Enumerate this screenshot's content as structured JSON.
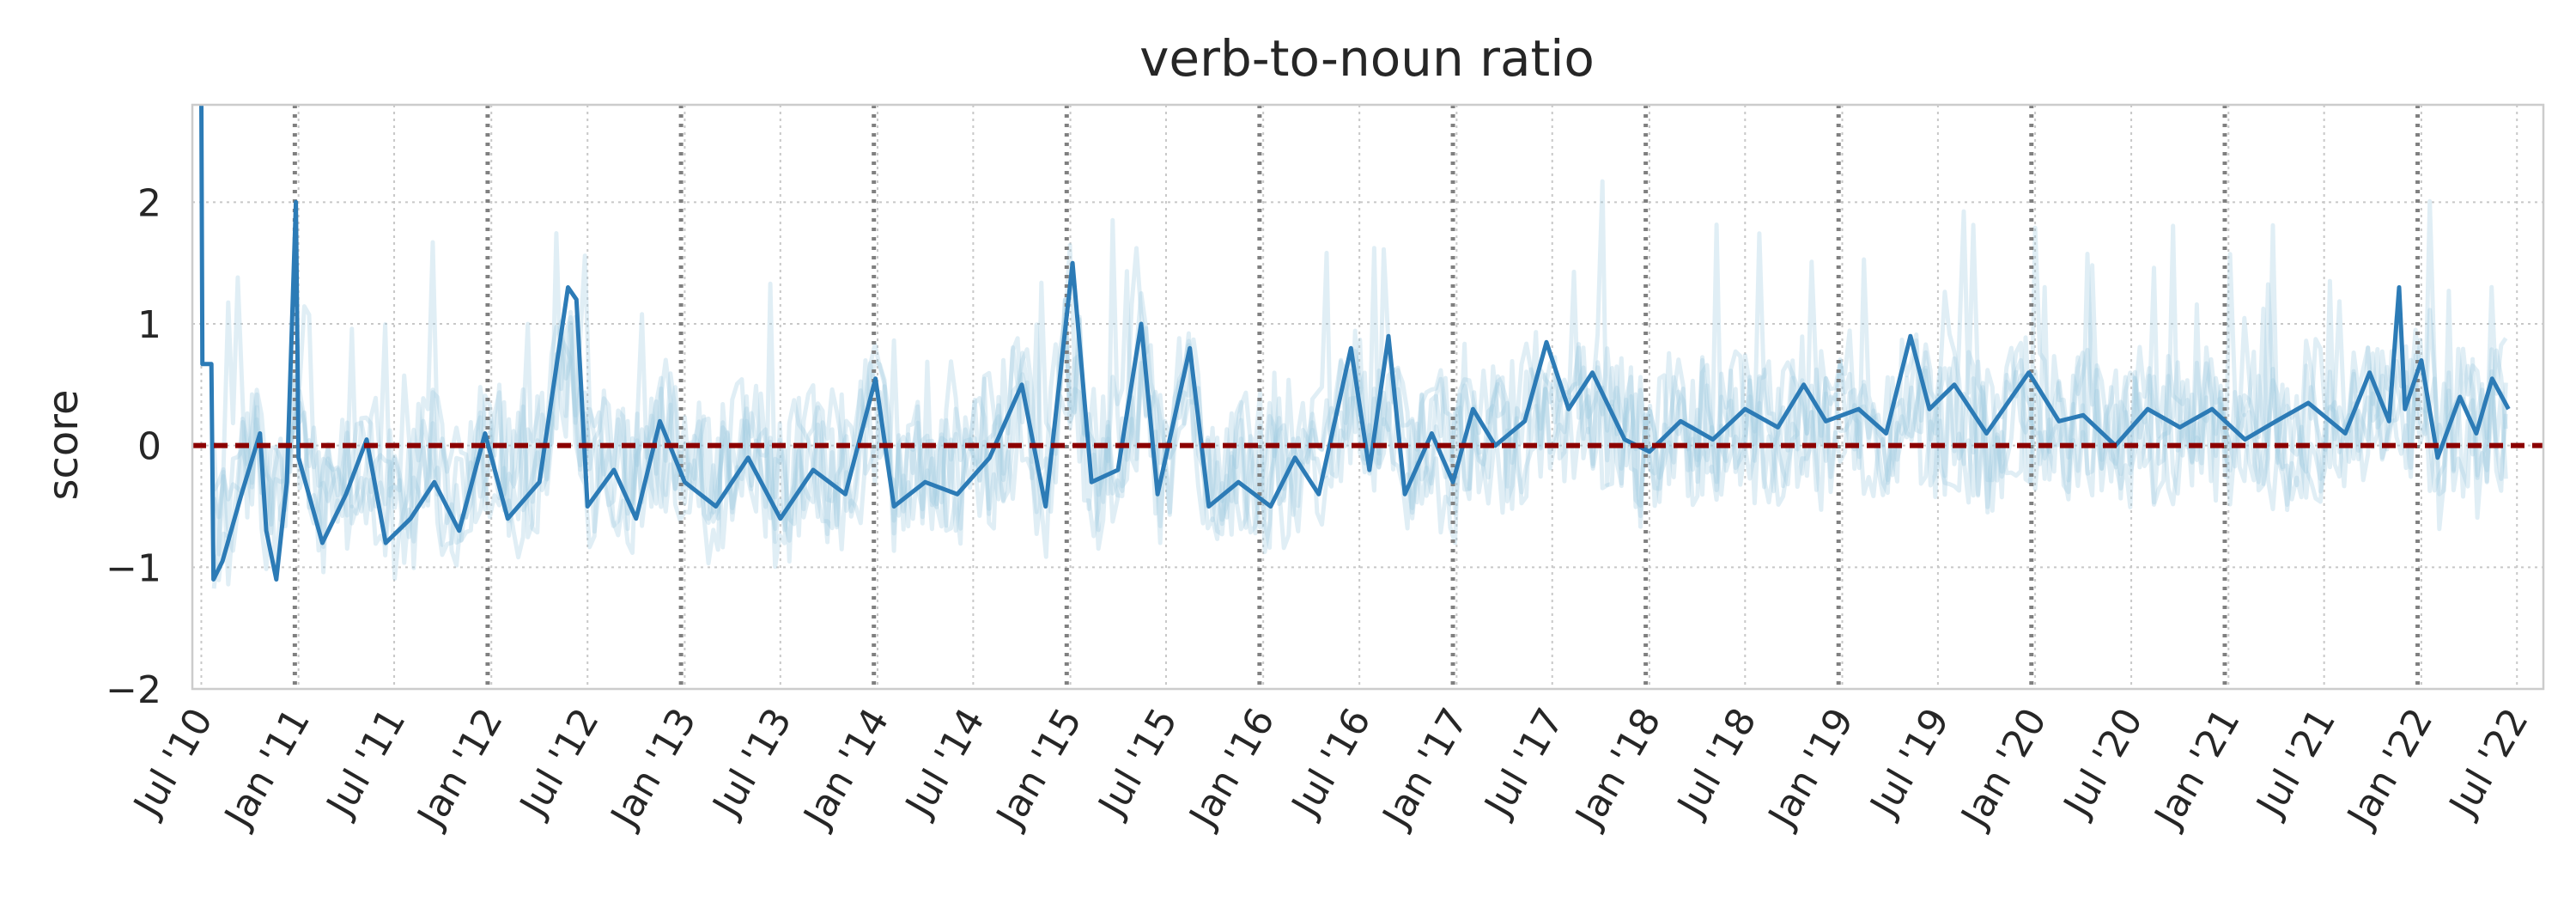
{
  "chart_data": {
    "type": "line",
    "title": "verb-to-noun ratio",
    "xlabel": "",
    "ylabel": "score",
    "xlim": [
      "2010-06-14",
      "2022-08-20"
    ],
    "ylim": [
      -2,
      2.8
    ],
    "yticks": [
      -2,
      -1,
      0,
      1,
      2
    ],
    "ytick_labels": [
      "−2",
      "−1",
      "0",
      "1",
      "2"
    ],
    "xticks": [
      "2010-07-01",
      "2011-01-01",
      "2011-07-01",
      "2012-01-01",
      "2012-07-01",
      "2013-01-01",
      "2013-07-01",
      "2014-01-01",
      "2014-07-01",
      "2015-01-01",
      "2015-07-01",
      "2016-01-01",
      "2016-07-01",
      "2017-01-01",
      "2017-07-01",
      "2018-01-01",
      "2018-07-01",
      "2019-01-01",
      "2019-07-01",
      "2020-01-01",
      "2020-07-01",
      "2021-01-01",
      "2021-07-01",
      "2022-01-01",
      "2022-07-01"
    ],
    "xtick_labels": [
      "Jul '10",
      "Jan '11",
      "Jul '11",
      "Jan '12",
      "Jul '12",
      "Jan '13",
      "Jul '13",
      "Jan '14",
      "Jul '14",
      "Jan '15",
      "Jul '15",
      "Jan '16",
      "Jul '16",
      "Jan '17",
      "Jul '17",
      "Jan '18",
      "Jul '18",
      "Jan '19",
      "Jul '19",
      "Jan '20",
      "Jul '20",
      "Jan '21",
      "Jul '21",
      "Jan '22",
      "Jul '22"
    ],
    "grid": true,
    "reference_line": {
      "y": 0,
      "color": "#8b0000",
      "style": "dashed"
    },
    "vertical_markers": [
      "2010-12-25",
      "2011-12-25",
      "2012-12-25",
      "2013-12-25",
      "2014-12-25",
      "2015-12-25",
      "2016-12-25",
      "2017-12-25",
      "2018-12-25",
      "2019-12-25",
      "2020-12-25",
      "2021-12-25"
    ],
    "colors": {
      "main": "#2c7bb6",
      "faint": "#9ecae1",
      "axis": "#cccccc",
      "marker": "#808080"
    },
    "series": [
      {
        "role": "main",
        "points": [
          [
            "2010-07-01",
            2.8
          ],
          [
            "2010-07-03",
            0.67
          ],
          [
            "2010-07-20",
            0.67
          ],
          [
            "2010-07-24",
            -1.1
          ],
          [
            "2010-08-10",
            -0.95
          ],
          [
            "2010-09-15",
            -0.4
          ],
          [
            "2010-10-20",
            0.1
          ],
          [
            "2010-11-01",
            -0.7
          ],
          [
            "2010-11-20",
            -1.1
          ],
          [
            "2010-12-10",
            -0.3
          ],
          [
            "2010-12-27",
            2.0
          ],
          [
            "2011-01-01",
            -0.1
          ],
          [
            "2011-02-15",
            -0.8
          ],
          [
            "2011-04-01",
            -0.4
          ],
          [
            "2011-05-10",
            0.05
          ],
          [
            "2011-06-15",
            -0.8
          ],
          [
            "2011-08-01",
            -0.6
          ],
          [
            "2011-09-15",
            -0.3
          ],
          [
            "2011-11-01",
            -0.7
          ],
          [
            "2011-12-20",
            0.1
          ],
          [
            "2012-02-01",
            -0.6
          ],
          [
            "2012-04-01",
            -0.3
          ],
          [
            "2012-05-25",
            1.3
          ],
          [
            "2012-06-10",
            1.2
          ],
          [
            "2012-07-01",
            -0.5
          ],
          [
            "2012-08-20",
            -0.2
          ],
          [
            "2012-10-01",
            -0.6
          ],
          [
            "2012-11-15",
            0.2
          ],
          [
            "2013-01-01",
            -0.3
          ],
          [
            "2013-03-01",
            -0.5
          ],
          [
            "2013-05-01",
            -0.1
          ],
          [
            "2013-07-01",
            -0.6
          ],
          [
            "2013-09-01",
            -0.2
          ],
          [
            "2013-11-01",
            -0.4
          ],
          [
            "2013-12-28",
            0.55
          ],
          [
            "2014-02-01",
            -0.5
          ],
          [
            "2014-04-01",
            -0.3
          ],
          [
            "2014-06-01",
            -0.4
          ],
          [
            "2014-08-01",
            -0.1
          ],
          [
            "2014-10-01",
            0.5
          ],
          [
            "2014-11-15",
            -0.5
          ],
          [
            "2015-01-05",
            1.5
          ],
          [
            "2015-02-10",
            -0.3
          ],
          [
            "2015-04-01",
            -0.2
          ],
          [
            "2015-05-15",
            1.0
          ],
          [
            "2015-06-15",
            -0.4
          ],
          [
            "2015-08-15",
            0.8
          ],
          [
            "2015-09-20",
            -0.5
          ],
          [
            "2015-11-15",
            -0.3
          ],
          [
            "2016-01-15",
            -0.5
          ],
          [
            "2016-03-01",
            -0.1
          ],
          [
            "2016-04-15",
            -0.4
          ],
          [
            "2016-06-15",
            0.8
          ],
          [
            "2016-07-20",
            -0.2
          ],
          [
            "2016-08-25",
            0.9
          ],
          [
            "2016-09-25",
            -0.4
          ],
          [
            "2016-11-15",
            0.1
          ],
          [
            "2016-12-25",
            -0.3
          ],
          [
            "2017-02-01",
            0.3
          ],
          [
            "2017-03-15",
            0.0
          ],
          [
            "2017-05-10",
            0.2
          ],
          [
            "2017-06-20",
            0.85
          ],
          [
            "2017-08-01",
            0.3
          ],
          [
            "2017-09-15",
            0.6
          ],
          [
            "2017-11-15",
            0.05
          ],
          [
            "2018-01-01",
            -0.05
          ],
          [
            "2018-03-01",
            0.2
          ],
          [
            "2018-05-01",
            0.05
          ],
          [
            "2018-07-01",
            0.3
          ],
          [
            "2018-09-01",
            0.15
          ],
          [
            "2018-10-20",
            0.5
          ],
          [
            "2018-12-01",
            0.2
          ],
          [
            "2019-02-01",
            0.3
          ],
          [
            "2019-03-25",
            0.1
          ],
          [
            "2019-05-10",
            0.9
          ],
          [
            "2019-06-15",
            0.3
          ],
          [
            "2019-08-01",
            0.5
          ],
          [
            "2019-10-01",
            0.1
          ],
          [
            "2019-12-20",
            0.6
          ],
          [
            "2020-02-15",
            0.2
          ],
          [
            "2020-04-01",
            0.25
          ],
          [
            "2020-06-01",
            0.0
          ],
          [
            "2020-08-01",
            0.3
          ],
          [
            "2020-10-01",
            0.15
          ],
          [
            "2020-12-01",
            0.3
          ],
          [
            "2021-02-01",
            0.05
          ],
          [
            "2021-04-01",
            0.2
          ],
          [
            "2021-06-01",
            0.35
          ],
          [
            "2021-08-10",
            0.1
          ],
          [
            "2021-09-25",
            0.6
          ],
          [
            "2021-11-01",
            0.2
          ],
          [
            "2021-11-20",
            1.3
          ],
          [
            "2021-12-01",
            0.3
          ],
          [
            "2022-01-01",
            0.7
          ],
          [
            "2022-02-01",
            -0.1
          ],
          [
            "2022-03-15",
            0.4
          ],
          [
            "2022-04-15",
            0.1
          ],
          [
            "2022-05-15",
            0.55
          ],
          [
            "2022-06-15",
            0.3
          ]
        ]
      }
    ]
  }
}
